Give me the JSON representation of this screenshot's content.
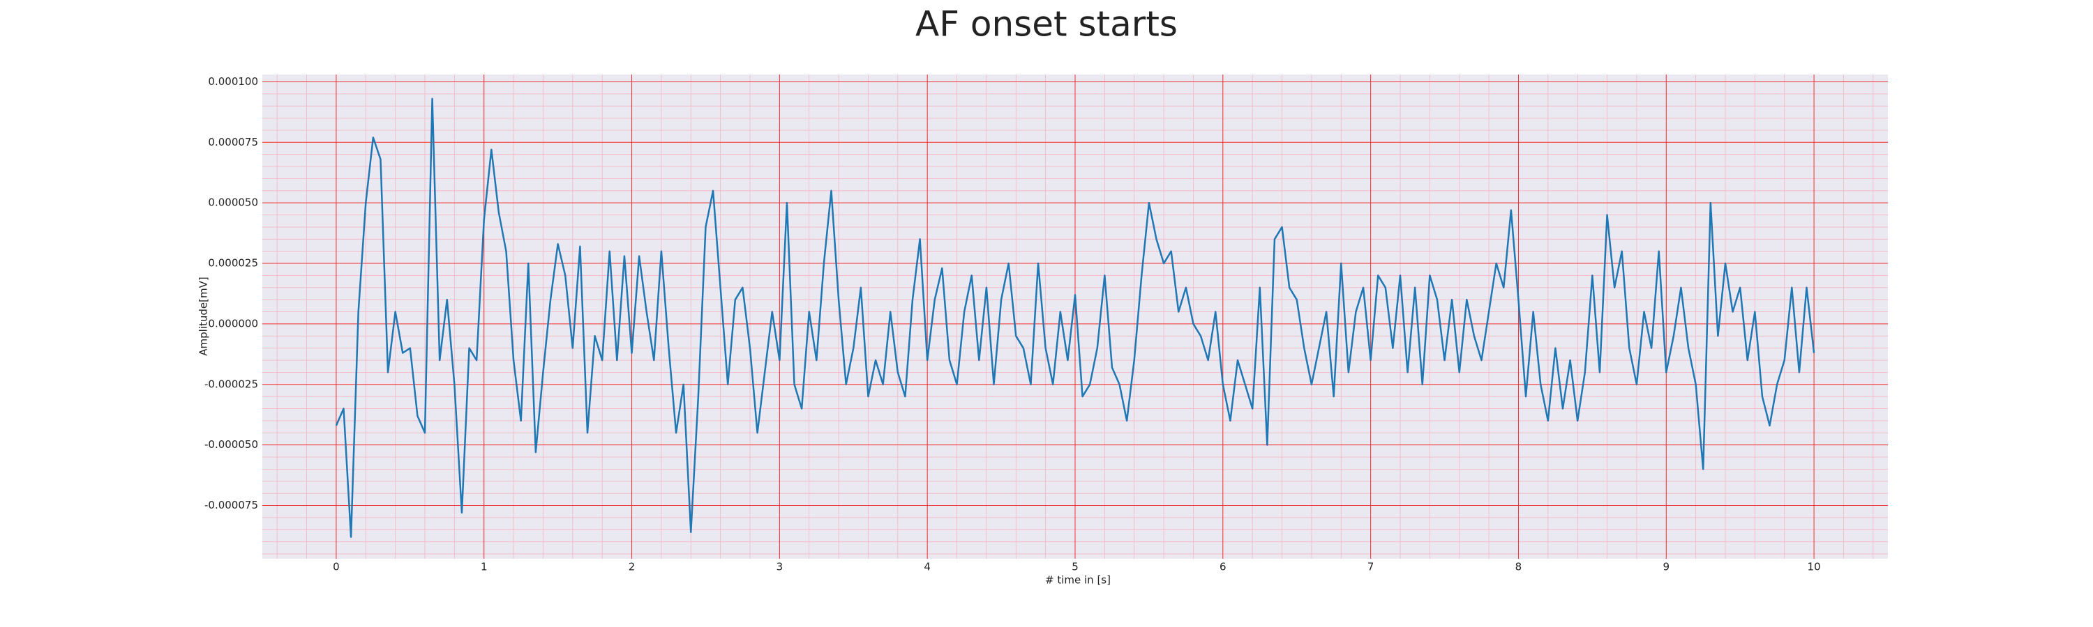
{
  "chart_data": {
    "type": "line",
    "title": "AF onset starts",
    "xlabel": "# time in [s]",
    "ylabel": "Amplitude[mV]",
    "xlim": [
      -0.5,
      10.5
    ],
    "xticks": [
      0,
      1,
      2,
      3,
      4,
      5,
      6,
      7,
      8,
      9,
      10
    ],
    "ylim": [
      -9.7e-05,
      0.000103
    ],
    "yticks": [
      {
        "value": -7.5e-05,
        "label": "-0.000075"
      },
      {
        "value": -5e-05,
        "label": "-0.000050"
      },
      {
        "value": -2.5e-05,
        "label": "-0.000025"
      },
      {
        "value": 0,
        "label": "0.000000"
      },
      {
        "value": 2.5e-05,
        "label": "0.000025"
      },
      {
        "value": 5e-05,
        "label": "0.000050"
      },
      {
        "value": 7.5e-05,
        "label": "0.000075"
      },
      {
        "value": 0.0001,
        "label": "0.000100"
      }
    ],
    "grid": true,
    "minor_grid": true,
    "series": [
      {
        "color": "#1f77b4",
        "x": [
          0,
          0.05,
          0.1,
          0.15,
          0.2,
          0.25,
          0.3,
          0.35,
          0.4,
          0.45,
          0.5,
          0.55,
          0.6,
          0.65,
          0.7,
          0.75,
          0.8,
          0.85,
          0.9,
          0.95,
          1,
          1.05,
          1.1,
          1.15,
          1.2,
          1.25,
          1.3,
          1.35,
          1.4,
          1.45,
          1.5,
          1.55,
          1.6,
          1.65,
          1.7,
          1.75,
          1.8,
          1.85,
          1.9,
          1.95,
          2,
          2.05,
          2.1,
          2.15,
          2.2,
          2.25,
          2.3,
          2.35,
          2.4,
          2.45,
          2.5,
          2.55,
          2.6,
          2.65,
          2.7,
          2.75,
          2.8,
          2.85,
          2.9,
          2.95,
          3,
          3.05,
          3.1,
          3.15,
          3.2,
          3.25,
          3.3,
          3.35,
          3.4,
          3.45,
          3.5,
          3.55,
          3.6,
          3.65,
          3.7,
          3.75,
          3.8,
          3.85,
          3.9,
          3.95,
          4,
          4.05,
          4.1,
          4.15,
          4.2,
          4.25,
          4.3,
          4.35,
          4.4,
          4.45,
          4.5,
          4.55,
          4.6,
          4.65,
          4.7,
          4.75,
          4.8,
          4.85,
          4.9,
          4.95,
          5,
          5.05,
          5.1,
          5.15,
          5.2,
          5.25,
          5.3,
          5.35,
          5.4,
          5.45,
          5.5,
          5.55,
          5.6,
          5.65,
          5.7,
          5.75,
          5.8,
          5.85,
          5.9,
          5.95,
          6,
          6.05,
          6.1,
          6.15,
          6.2,
          6.25,
          6.3,
          6.35,
          6.4,
          6.45,
          6.5,
          6.55,
          6.6,
          6.65,
          6.7,
          6.75,
          6.8,
          6.85,
          6.9,
          6.95,
          7,
          7.05,
          7.1,
          7.15,
          7.2,
          7.25,
          7.3,
          7.35,
          7.4,
          7.45,
          7.5,
          7.55,
          7.6,
          7.65,
          7.7,
          7.75,
          7.8,
          7.85,
          7.9,
          7.95,
          8,
          8.05,
          8.1,
          8.15,
          8.2,
          8.25,
          8.3,
          8.35,
          8.4,
          8.45,
          8.5,
          8.55,
          8.6,
          8.65,
          8.7,
          8.75,
          8.8,
          8.85,
          8.9,
          8.95,
          9,
          9.05,
          9.1,
          9.15,
          9.2,
          9.25,
          9.3,
          9.35,
          9.4,
          9.45,
          9.5,
          9.55,
          9.6,
          9.65,
          9.7,
          9.75,
          9.8,
          9.85,
          9.9,
          9.95,
          10
        ],
        "values": [
          -4.2e-05,
          -3.5e-05,
          -8.8e-05,
          5e-06,
          5e-05,
          7.7e-05,
          6.8e-05,
          -2e-05,
          5e-06,
          -1.2e-05,
          -1e-05,
          -3.8e-05,
          -4.5e-05,
          9.3e-05,
          -1.5e-05,
          1e-05,
          -2.5e-05,
          -7.8e-05,
          -1e-05,
          -1.5e-05,
          4.3e-05,
          7.2e-05,
          4.6e-05,
          3e-05,
          -1.5e-05,
          -4e-05,
          2.5e-05,
          -5.3e-05,
          -2e-05,
          1e-05,
          3.3e-05,
          2e-05,
          -1e-05,
          3.2e-05,
          -4.5e-05,
          -5e-06,
          -1.5e-05,
          3e-05,
          -1.5e-05,
          2.8e-05,
          -1.2e-05,
          2.8e-05,
          5e-06,
          -1.5e-05,
          3e-05,
          -1e-05,
          -4.5e-05,
          -2.5e-05,
          -8.6e-05,
          -3e-05,
          4e-05,
          5.5e-05,
          1.5e-05,
          -2.5e-05,
          1e-05,
          1.5e-05,
          -1e-05,
          -4.5e-05,
          -2e-05,
          5e-06,
          -1.5e-05,
          5e-05,
          -2.5e-05,
          -3.5e-05,
          5e-06,
          -1.5e-05,
          2.5e-05,
          5.5e-05,
          1e-05,
          -2.5e-05,
          -1e-05,
          1.5e-05,
          -3e-05,
          -1.5e-05,
          -2.5e-05,
          5e-06,
          -2e-05,
          -3e-05,
          1e-05,
          3.5e-05,
          -1.5e-05,
          1e-05,
          2.3e-05,
          -1.5e-05,
          -2.5e-05,
          5e-06,
          2e-05,
          -1.5e-05,
          1.5e-05,
          -2.5e-05,
          1e-05,
          2.5e-05,
          -5e-06,
          -1e-05,
          -2.5e-05,
          2.5e-05,
          -1e-05,
          -2.5e-05,
          5e-06,
          -1.5e-05,
          1.2e-05,
          -3e-05,
          -2.5e-05,
          -1e-05,
          2e-05,
          -1.8e-05,
          -2.5e-05,
          -4e-05,
          -1.5e-05,
          2e-05,
          5e-05,
          3.5e-05,
          2.5e-05,
          3e-05,
          5e-06,
          1.5e-05,
          0,
          -5e-06,
          -1.5e-05,
          5e-06,
          -2.5e-05,
          -4e-05,
          -1.5e-05,
          -2.5e-05,
          -3.5e-05,
          1.5e-05,
          -5e-05,
          3.5e-05,
          4e-05,
          1.5e-05,
          1e-05,
          -1e-05,
          -2.5e-05,
          -1e-05,
          5e-06,
          -3e-05,
          2.5e-05,
          -2e-05,
          5e-06,
          1.5e-05,
          -1.5e-05,
          2e-05,
          1.5e-05,
          -1e-05,
          2e-05,
          -2e-05,
          1.5e-05,
          -2.5e-05,
          2e-05,
          1e-05,
          -1.5e-05,
          1e-05,
          -2e-05,
          1e-05,
          -5e-06,
          -1.5e-05,
          5e-06,
          2.5e-05,
          1.5e-05,
          4.7e-05,
          1e-05,
          -3e-05,
          5e-06,
          -2.5e-05,
          -4e-05,
          -1e-05,
          -3.5e-05,
          -1.5e-05,
          -4e-05,
          -2e-05,
          2e-05,
          -2e-05,
          4.5e-05,
          1.5e-05,
          3e-05,
          -1e-05,
          -2.5e-05,
          5e-06,
          -1e-05,
          3e-05,
          -2e-05,
          -5e-06,
          1.5e-05,
          -1e-05,
          -2.5e-05,
          -6e-05,
          5e-05,
          -5e-06,
          2.5e-05,
          5e-06,
          1.5e-05,
          -1.5e-05,
          5e-06,
          -3e-05,
          -4.2e-05,
          -2.5e-05,
          -1.5e-05,
          1.5e-05,
          -2e-05,
          1.5e-05,
          -1.2e-05
        ]
      }
    ]
  }
}
